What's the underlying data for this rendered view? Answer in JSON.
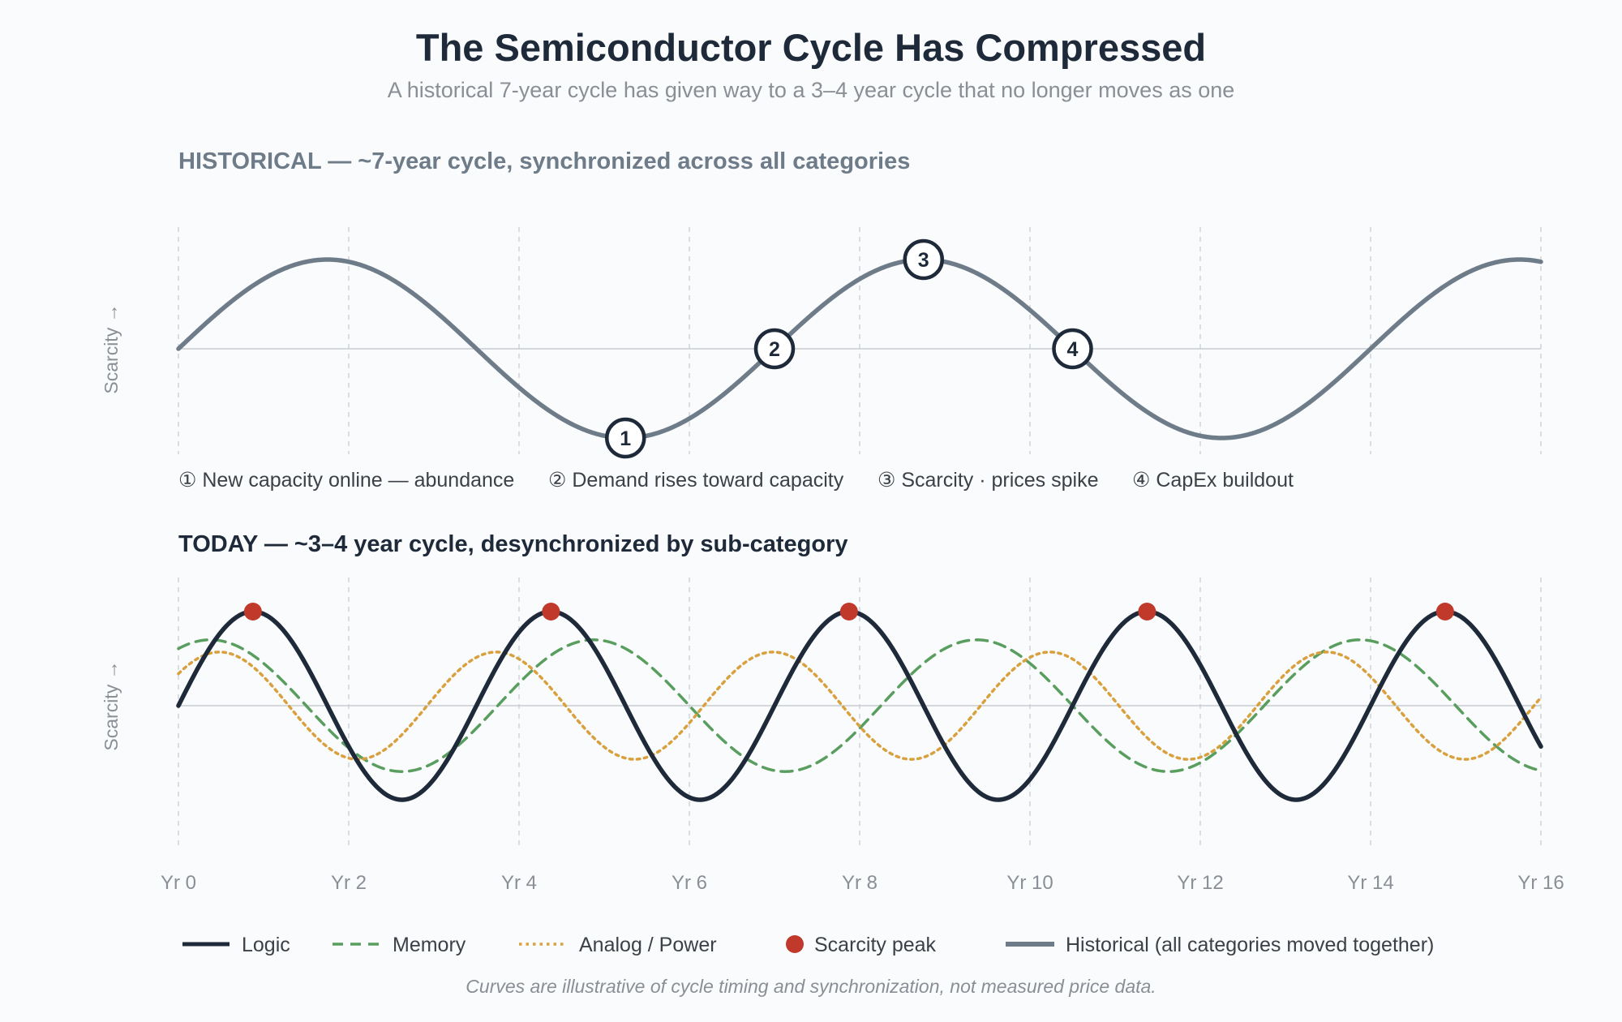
{
  "header": {
    "title": "The Semiconductor Cycle Has Compressed",
    "subtitle": "A historical 7-year cycle has given way to a 3–4 year cycle that no longer moves as one"
  },
  "colors": {
    "historical": "#6e7b88",
    "logic": "#1e2a3a",
    "memory": "#5a9e5f",
    "analog": "#d9a03e",
    "peak": "#c0392b",
    "grid": "#cfd3d8",
    "baseline": "#c8ccd1"
  },
  "chart_data": [
    {
      "type": "line",
      "panel_title": "HISTORICAL — ~7-year cycle, synchronized across all categories",
      "ylabel": "Scarcity →",
      "xlim": [
        0,
        16
      ],
      "series": [
        {
          "name": "Historical (all categories moved together)",
          "function": "sine",
          "period_years": 7,
          "amplitude": 1,
          "phase_years": 0,
          "style": "solid"
        }
      ],
      "markers": [
        {
          "label": "1",
          "x": 5.25,
          "y": -1.0
        },
        {
          "label": "2",
          "x": 7.0,
          "y": 0.0
        },
        {
          "label": "3",
          "x": 8.75,
          "y": 1.0
        },
        {
          "label": "4",
          "x": 10.5,
          "y": 0.0
        }
      ],
      "stage_labels": [
        "① New capacity online — abundance",
        "② Demand rises toward capacity",
        "③ Scarcity · prices spike",
        "④ CapEx buildout"
      ]
    },
    {
      "type": "line",
      "panel_title": "TODAY — ~3–4 year cycle, desynchronized by sub-category",
      "ylabel": "Scarcity →",
      "xlim": [
        0,
        16
      ],
      "x_ticks": [
        "Yr 0",
        "Yr 2",
        "Yr 4",
        "Yr 6",
        "Yr 8",
        "Yr 10",
        "Yr 12",
        "Yr 14",
        "Yr 16"
      ],
      "series": [
        {
          "name": "Logic",
          "function": "sine",
          "period_years": 3.5,
          "amplitude": 1.0,
          "phase_years": 0,
          "style": "solid"
        },
        {
          "name": "Memory",
          "function": "sine",
          "period_years": 4.5,
          "amplitude": 0.7,
          "phase_years": 0.75,
          "style": "dashed"
        },
        {
          "name": "Analog / Power",
          "function": "sine",
          "period_years": 3.25,
          "amplitude": 0.57,
          "phase_years": 0.33,
          "style": "dotted"
        }
      ],
      "scarcity_peaks_x": [
        0.875,
        4.375,
        7.875,
        11.375,
        14.875
      ]
    }
  ],
  "legend": [
    {
      "label": "Logic",
      "kind": "solid-line",
      "color_key": "logic"
    },
    {
      "label": "Memory",
      "kind": "dashed-line",
      "color_key": "memory"
    },
    {
      "label": "Analog / Power",
      "kind": "dotted-line",
      "color_key": "analog"
    },
    {
      "label": "Scarcity peak",
      "kind": "dot",
      "color_key": "peak"
    },
    {
      "label": "Historical (all categories moved together)",
      "kind": "solid-line",
      "color_key": "historical"
    }
  ],
  "footnote": "Curves are illustrative of cycle timing and synchronization, not measured price data."
}
